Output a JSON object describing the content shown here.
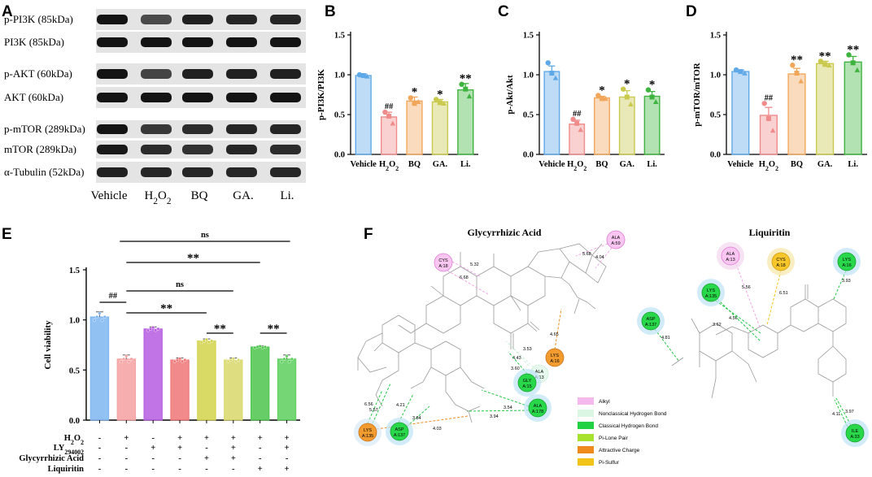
{
  "panels": {
    "A": "A",
    "B": "B",
    "C": "C",
    "D": "D",
    "E": "E",
    "F": "F"
  },
  "blot": {
    "rows": [
      "p-PI3K (85kDa)",
      "PI3K (85kDa)",
      "p-AKT (60kDa)",
      "AKT (60kDa)",
      "p-mTOR (289kDa)",
      "mTOR (289kDa)",
      "α-Tubulin (52kDa)"
    ],
    "lanes": [
      "Vehicle",
      "H2O2",
      "BQ",
      "GA.",
      "Li."
    ]
  },
  "chart_data": [
    {
      "type": "bar",
      "panel": "B",
      "ylabel": "p-PI3K/PI3K",
      "ylim": [
        0,
        1.5
      ],
      "yticks": [
        0.0,
        0.5,
        1.0,
        1.5
      ],
      "categories": [
        "Vehicle",
        "H2O2",
        "BQ",
        "GA.",
        "Li."
      ],
      "values": [
        0.99,
        0.47,
        0.67,
        0.66,
        0.81
      ],
      "errors": [
        0.02,
        0.06,
        0.05,
        0.03,
        0.08
      ],
      "points": [
        [
          1.0,
          0.99,
          0.98
        ],
        [
          0.53,
          0.48,
          0.39
        ],
        [
          0.71,
          0.64,
          0.66
        ],
        [
          0.69,
          0.65,
          0.64
        ],
        [
          0.88,
          0.82,
          0.73
        ]
      ],
      "annotations": [
        "",
        "##",
        "*",
        "*",
        "**"
      ],
      "colors": [
        "#5fa8e8",
        "#f08b8b",
        "#f2a65a",
        "#c9c94e",
        "#3fb33f"
      ]
    },
    {
      "type": "bar",
      "panel": "C",
      "ylabel": "p-Akt/Akt",
      "ylim": [
        0,
        1.5
      ],
      "yticks": [
        0.0,
        0.5,
        1.0,
        1.5
      ],
      "categories": [
        "Vehicle",
        "H2O2",
        "BQ",
        "GA.",
        "Li."
      ],
      "values": [
        1.04,
        0.38,
        0.71,
        0.72,
        0.73
      ],
      "errors": [
        0.07,
        0.05,
        0.02,
        0.08,
        0.06
      ],
      "points": [
        [
          1.15,
          1.02,
          0.96
        ],
        [
          0.44,
          0.39,
          0.31
        ],
        [
          0.74,
          0.7,
          0.7
        ],
        [
          0.82,
          0.72,
          0.63
        ],
        [
          0.81,
          0.72,
          0.66
        ]
      ],
      "annotations": [
        "",
        "##",
        "*",
        "*",
        "*"
      ],
      "colors": [
        "#5fa8e8",
        "#f08b8b",
        "#f2a65a",
        "#c9c94e",
        "#3fb33f"
      ]
    },
    {
      "type": "bar",
      "panel": "D",
      "ylabel": "p-mTOR/mTOR",
      "ylim": [
        0,
        1.5
      ],
      "yticks": [
        0.0,
        0.5,
        1.0,
        1.5
      ],
      "categories": [
        "Vehicle",
        "H2O2",
        "BQ",
        "GA.",
        "Li."
      ],
      "values": [
        1.04,
        0.49,
        1.01,
        1.14,
        1.16
      ],
      "errors": [
        0.02,
        0.1,
        0.07,
        0.03,
        0.07
      ],
      "points": [
        [
          1.06,
          1.04,
          1.02
        ],
        [
          0.64,
          0.45,
          0.3
        ],
        [
          1.12,
          1.02,
          0.92
        ],
        [
          1.17,
          1.13,
          1.12
        ],
        [
          1.25,
          1.15,
          1.06
        ]
      ],
      "annotations": [
        "",
        "##",
        "**",
        "**",
        "**"
      ],
      "colors": [
        "#5fa8e8",
        "#f08b8b",
        "#f2a65a",
        "#c9c94e",
        "#3fb33f"
      ]
    },
    {
      "type": "bar",
      "panel": "E",
      "ylabel": "Cell viability",
      "ylim": [
        0,
        1.5
      ],
      "yticks": [
        0.0,
        0.5,
        1.0,
        1.5
      ],
      "values": [
        1.03,
        0.61,
        0.91,
        0.6,
        0.79,
        0.6,
        0.73,
        0.61
      ],
      "errors": [
        0.05,
        0.04,
        0.02,
        0.02,
        0.02,
        0.02,
        0.01,
        0.04
      ],
      "colors": [
        "#7eb5f0",
        "#f5a0a0",
        "#b65ce0",
        "#ef7575",
        "#d2d24a",
        "#d8d86a",
        "#4cc64c",
        "#5ccf5c"
      ],
      "conditions": [
        {
          "label": "H2O2",
          "signs": [
            "-",
            "+",
            "-",
            "+",
            "+",
            "+",
            "+",
            "+"
          ]
        },
        {
          "label": "LY294002",
          "signs": [
            "-",
            "-",
            "+",
            "+",
            "-",
            "+",
            "-",
            "+"
          ]
        },
        {
          "label": "Glycyrrhizic Acid",
          "signs": [
            "-",
            "-",
            "-",
            "-",
            "+",
            "+",
            "-",
            "-"
          ]
        },
        {
          "label": "Liquiritin",
          "signs": [
            "-",
            "-",
            "-",
            "-",
            "-",
            "-",
            "+",
            "+"
          ]
        }
      ],
      "comparisons": [
        {
          "from": 0,
          "to": 1,
          "label": "##"
        },
        {
          "from": 1,
          "to": 4,
          "label": "**"
        },
        {
          "from": 4,
          "to": 5,
          "label": "**"
        },
        {
          "from": 1,
          "to": 5,
          "label": "ns"
        },
        {
          "from": 6,
          "to": 7,
          "label": "**"
        },
        {
          "from": 1,
          "to": 6,
          "label": "**"
        },
        {
          "from": 1,
          "to": 7,
          "label": "ns"
        }
      ]
    }
  ],
  "docking": {
    "left_title": "Glycyrrhizic Acid",
    "right_title": "Liquiritin",
    "legend": [
      {
        "label": "Alkyl",
        "color": "#f5b8ec"
      },
      {
        "label": "Nonclassical Hydrogen Bond",
        "color": "#dcf6e4"
      },
      {
        "label": "Classical Hydrogen Bond",
        "color": "#22d244"
      },
      {
        "label": "Pi-Lone Pair",
        "color": "#a6e22e"
      },
      {
        "label": "Attractive Charge",
        "color": "#ef8a1c"
      },
      {
        "label": "Pi-Sulfur",
        "color": "#f2c318"
      }
    ],
    "left_residues": [
      {
        "name": "CYS",
        "id": "A:18",
        "kind": "alkyl"
      },
      {
        "name": "ALA",
        "id": "A:59",
        "kind": "alkyl"
      },
      {
        "name": "ALA",
        "id": "A:13",
        "kind": "nonclassical"
      },
      {
        "name": "GLY",
        "id": "A:15",
        "kind": "hbond"
      },
      {
        "name": "LYS",
        "id": "A:16",
        "kind": "charge"
      },
      {
        "name": "ALA",
        "id": "A:178",
        "kind": "hbond"
      },
      {
        "name": "ASP",
        "id": "A:137",
        "kind": "hbond"
      },
      {
        "name": "LYS",
        "id": "A:135",
        "kind": "charge"
      }
    ],
    "left_distances": [
      "5.32",
      "6.68",
      "5.68",
      "4.04",
      "3.53",
      "4.43",
      "3.60",
      "4.65",
      "3.54",
      "3.94",
      "3.84",
      "4.21",
      "4.03",
      "6.56",
      "5.57"
    ],
    "right_residues": [
      {
        "name": "ALA",
        "id": "A:13",
        "kind": "alkyl"
      },
      {
        "name": "CYS",
        "id": "A:18",
        "kind": "pisulfur"
      },
      {
        "name": "LYS",
        "id": "A:16",
        "kind": "hbond"
      },
      {
        "name": "LYS",
        "id": "A:135",
        "kind": "hbond"
      },
      {
        "name": "ASP",
        "id": "A:137",
        "kind": "hbond"
      },
      {
        "name": "ILE",
        "id": "A:33",
        "kind": "hbond"
      }
    ],
    "right_distances": [
      "5.56",
      "6.51",
      "3.93",
      "4.56",
      "3.62",
      "4.81",
      "3.97",
      "4.11"
    ]
  }
}
